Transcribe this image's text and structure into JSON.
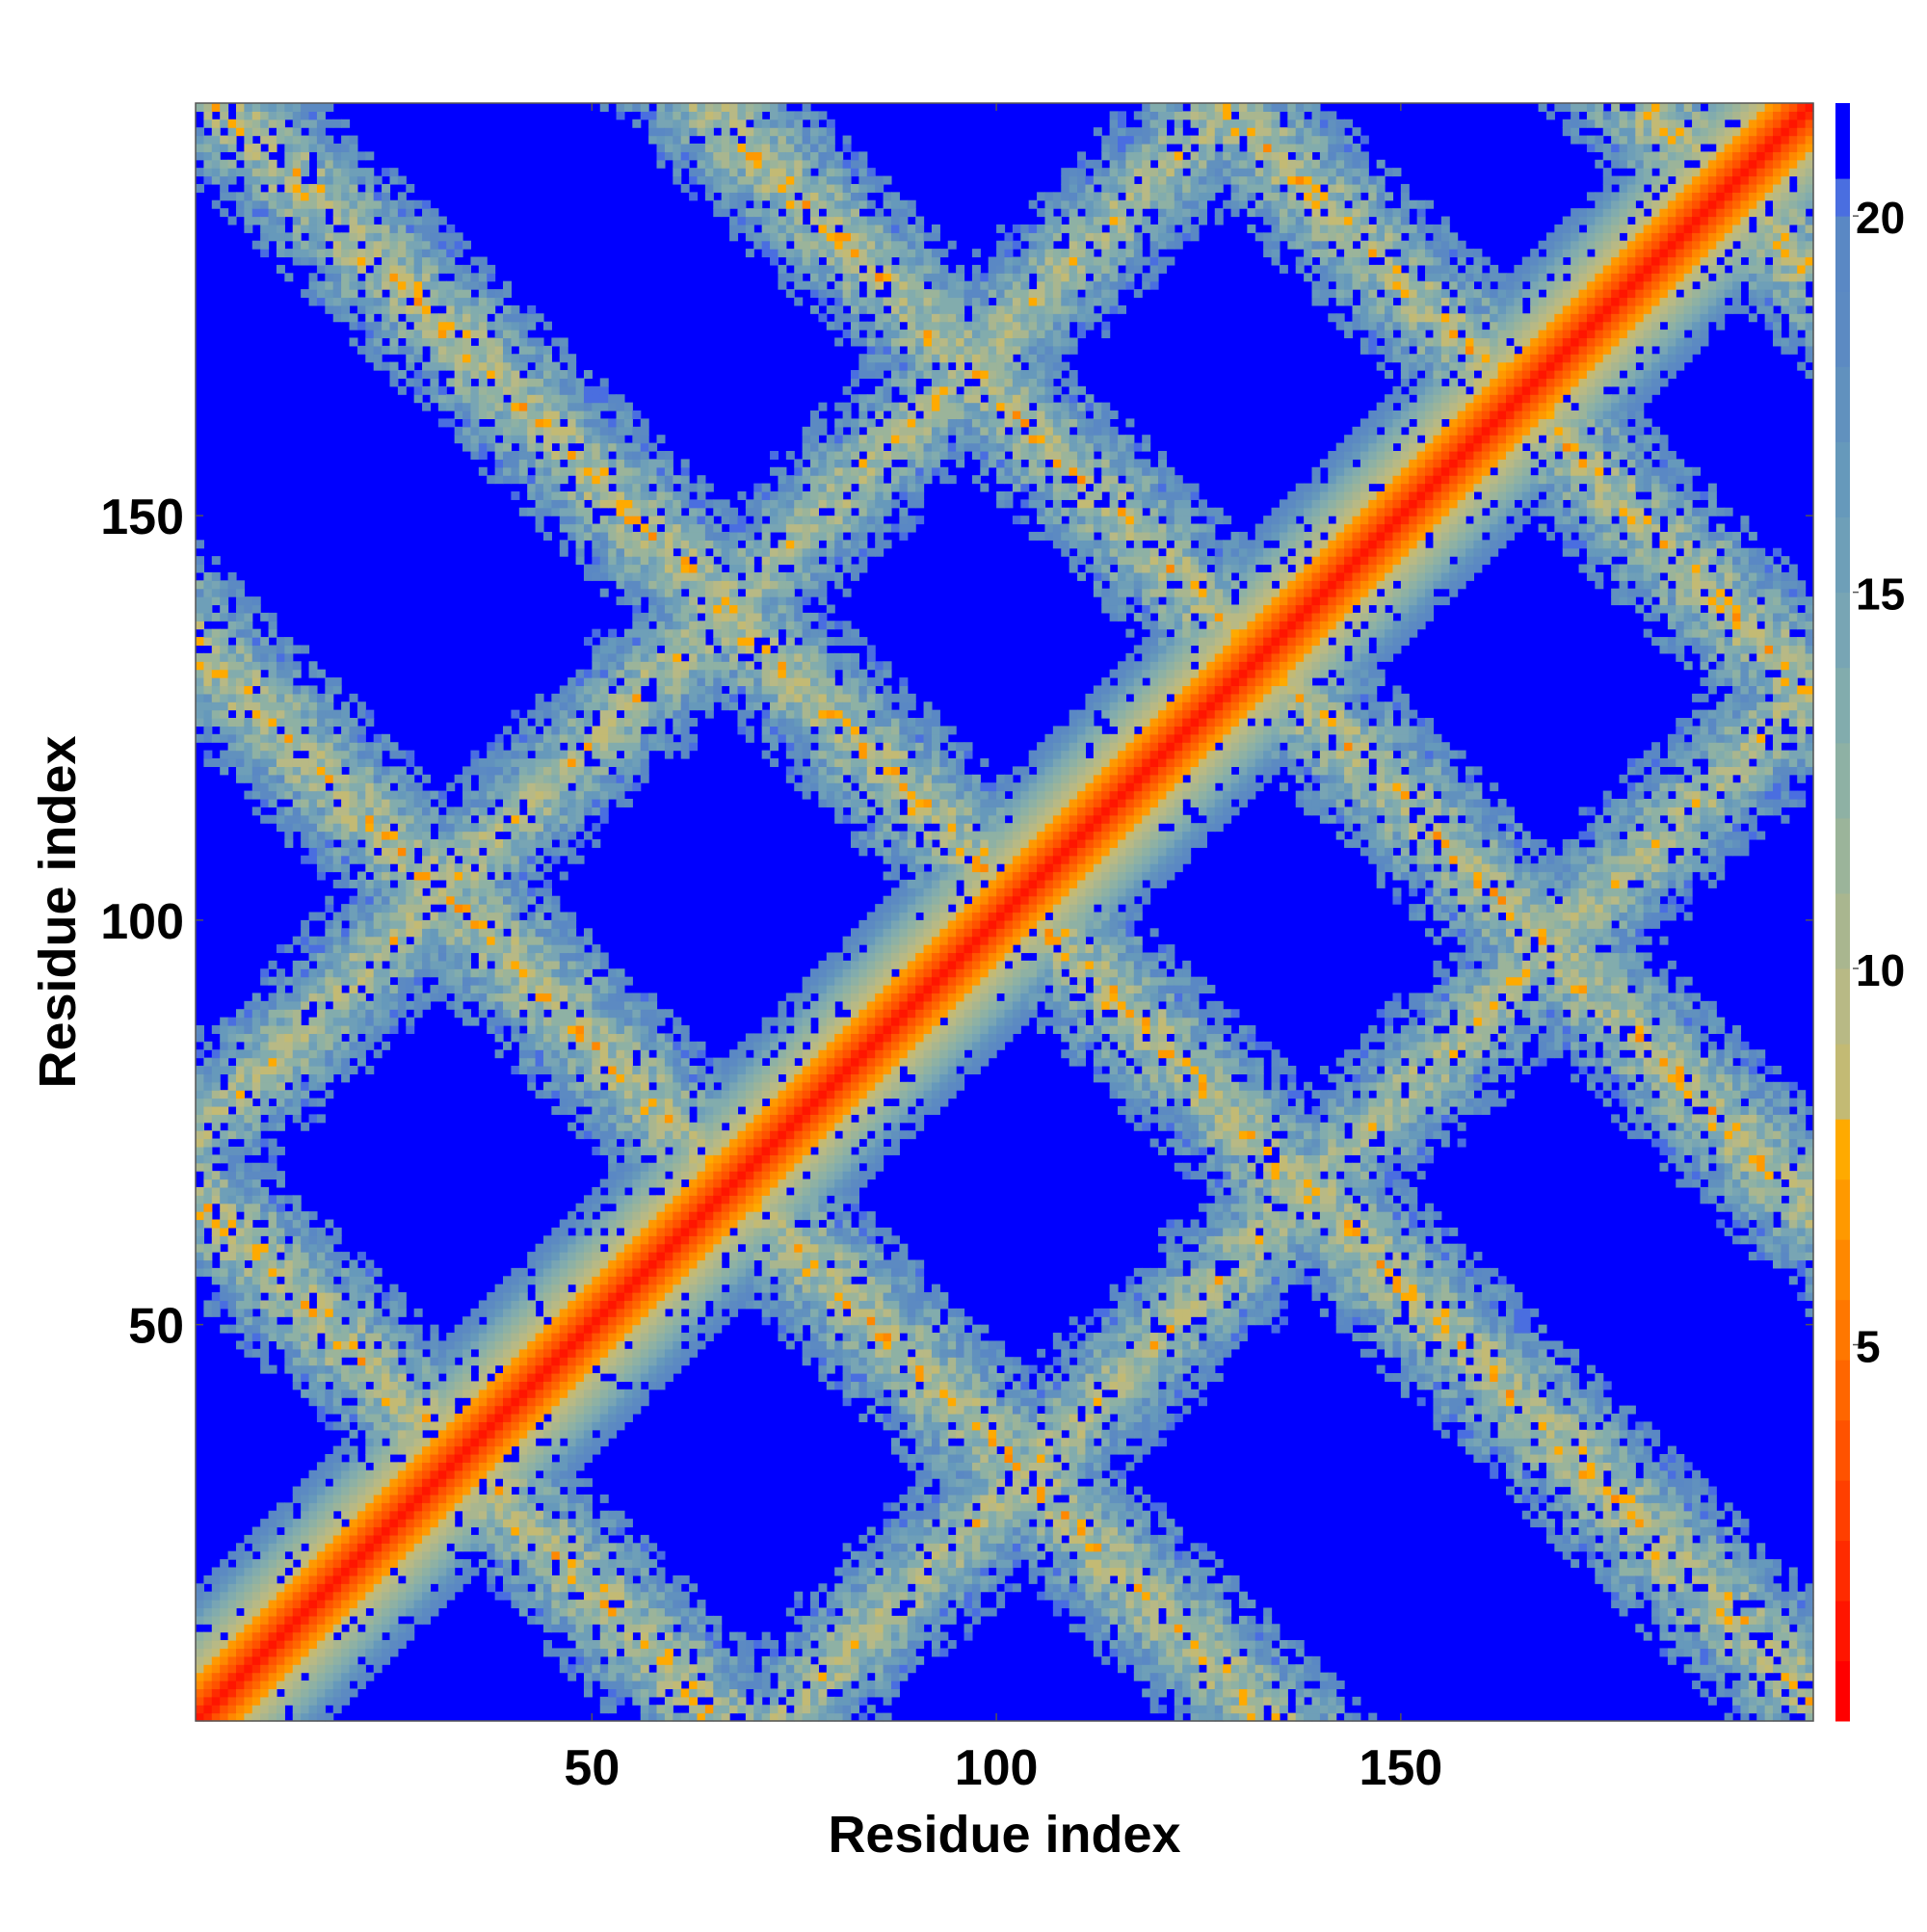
{
  "chart_data": {
    "type": "heatmap",
    "title": "",
    "xlabel": "Residue index",
    "ylabel": "Residue index",
    "xlim": [
      1,
      201
    ],
    "ylim": [
      1,
      201
    ],
    "xticks": [
      50,
      100,
      150
    ],
    "yticks": [
      50,
      100,
      150
    ],
    "colorbar": {
      "range": [
        0,
        21.5
      ],
      "ticks": [
        5,
        10,
        15,
        20
      ],
      "levels": [
        {
          "upper": 0.8,
          "color": "#ff0000"
        },
        {
          "upper": 1.6,
          "color": "#ff1500"
        },
        {
          "upper": 2.4,
          "color": "#ff2b00"
        },
        {
          "upper": 3.2,
          "color": "#ff3f00"
        },
        {
          "upper": 4.0,
          "color": "#ff5200"
        },
        {
          "upper": 4.8,
          "color": "#ff6600"
        },
        {
          "upper": 5.6,
          "color": "#ff7700"
        },
        {
          "upper": 6.4,
          "color": "#ff8800"
        },
        {
          "upper": 7.2,
          "color": "#ff9900"
        },
        {
          "upper": 8.0,
          "color": "#ffaa00"
        },
        {
          "upper": 9.0,
          "color": "#c3ba74"
        },
        {
          "upper": 10.0,
          "color": "#b8b985"
        },
        {
          "upper": 11.0,
          "color": "#a9b68f"
        },
        {
          "upper": 12.0,
          "color": "#9bb49a"
        },
        {
          "upper": 13.0,
          "color": "#8eb1a4"
        },
        {
          "upper": 14.0,
          "color": "#82acad"
        },
        {
          "upper": 15.0,
          "color": "#78a5b4"
        },
        {
          "upper": 16.0,
          "color": "#6e9fb8"
        },
        {
          "upper": 17.0,
          "color": "#6699bb"
        },
        {
          "upper": 18.0,
          "color": "#6191be"
        },
        {
          "upper": 19.0,
          "color": "#5c8ac2"
        },
        {
          "upper": 20.0,
          "color": "#5a88c4"
        },
        {
          "upper": 20.5,
          "color": "#4a6ee0"
        },
        {
          "upper": 21.5,
          "color": "#0000ff"
        }
      ]
    },
    "description": "Symmetric residue-residue distance map (~200 x 200) with a red/orange main diagonal and a lattice of diagonal and anti-diagonal contact bands; blue regions beyond ~20",
    "pattern": {
      "n": 200,
      "main_diagonal_halfwidth": 10,
      "parallel_bands_offsets": [
        -72,
        72
      ],
      "antiparallel_band_sums": [
        64,
        132,
        202,
        262,
        326,
        378
      ],
      "band_halfwidth": 14
    }
  }
}
